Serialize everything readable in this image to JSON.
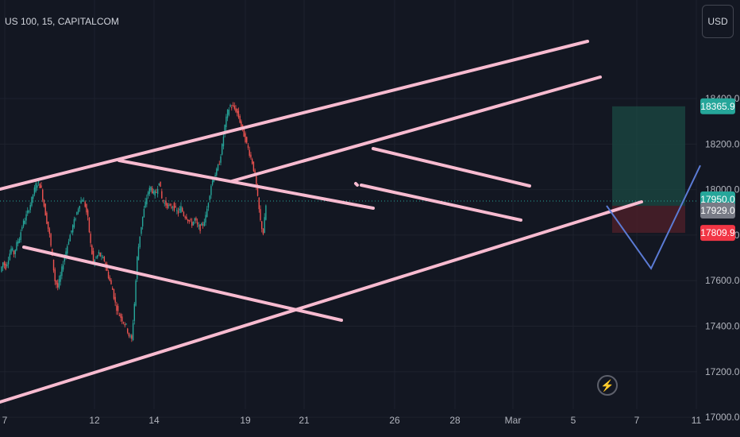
{
  "header": {
    "title": "US 100, 15, CAPITALCOM",
    "currency_button": "USD"
  },
  "colors": {
    "background": "#131722",
    "up": "#26a69a",
    "down": "#ef5350",
    "trendline": "#f8bbd0",
    "projection": "#5b7bd5",
    "target_zone": "#1b4a43",
    "stop_zone": "#4a1f28",
    "current_line": "#26a69a"
  },
  "chart_data": {
    "type": "candlestick",
    "symbol": "US 100",
    "interval": "15",
    "source": "CAPITALCOM",
    "y_axis": {
      "ticks": [
        17000.0,
        17200.0,
        17400.0,
        17600.0,
        17800.0,
        18000.0,
        18200.0,
        18400.0
      ],
      "tick_labels": [
        "17000.0",
        "17200.0",
        "17400.0",
        "17600.0",
        "17800.0",
        "18000.0",
        "18200.0",
        "18400.0"
      ],
      "ylim": [
        16960,
        18580
      ]
    },
    "x_axis": {
      "tick_labels": [
        "7",
        "12",
        "14",
        "19",
        "21",
        "26",
        "28",
        "Mar",
        "5",
        "7",
        "11"
      ]
    },
    "price_path": [
      [
        0,
        17640
      ],
      [
        4,
        17680
      ],
      [
        8,
        17660
      ],
      [
        12,
        17700
      ],
      [
        16,
        17740
      ],
      [
        20,
        17720
      ],
      [
        24,
        17760
      ],
      [
        28,
        17790
      ],
      [
        32,
        17840
      ],
      [
        36,
        17870
      ],
      [
        40,
        17900
      ],
      [
        44,
        17935
      ],
      [
        48,
        17980
      ],
      [
        52,
        18020
      ],
      [
        54,
        18035
      ],
      [
        56,
        18000
      ],
      [
        58,
        17930
      ],
      [
        60,
        17860
      ],
      [
        62,
        17800
      ],
      [
        64,
        17700
      ],
      [
        66,
        17600
      ],
      [
        68,
        17570
      ],
      [
        70,
        17620
      ],
      [
        72,
        17680
      ],
      [
        74,
        17730
      ],
      [
        76,
        17780
      ],
      [
        78,
        17820
      ],
      [
        80,
        17860
      ],
      [
        82,
        17900
      ],
      [
        84,
        17940
      ],
      [
        86,
        17960
      ],
      [
        88,
        17930
      ],
      [
        90,
        17870
      ],
      [
        92,
        17760
      ],
      [
        94,
        17680
      ],
      [
        96,
        17700
      ],
      [
        98,
        17720
      ],
      [
        100,
        17700
      ],
      [
        102,
        17690
      ],
      [
        104,
        17640
      ],
      [
        106,
        17600
      ],
      [
        108,
        17560
      ],
      [
        110,
        17500
      ],
      [
        112,
        17460
      ],
      [
        114,
        17440
      ],
      [
        116,
        17420
      ],
      [
        118,
        17400
      ],
      [
        120,
        17360
      ],
      [
        122,
        17340
      ],
      [
        124,
        17500
      ],
      [
        126,
        17700
      ],
      [
        128,
        17800
      ],
      [
        130,
        17880
      ],
      [
        132,
        17940
      ],
      [
        134,
        17990
      ],
      [
        136,
        18010
      ],
      [
        138,
        17980
      ],
      [
        140,
        17990
      ],
      [
        142,
        18040
      ],
      [
        144,
        17960
      ],
      [
        146,
        17940
      ],
      [
        148,
        17930
      ],
      [
        150,
        17920
      ],
      [
        152,
        17930
      ],
      [
        154,
        17910
      ],
      [
        156,
        17900
      ],
      [
        158,
        17920
      ],
      [
        160,
        17890
      ],
      [
        162,
        17880
      ],
      [
        164,
        17860
      ],
      [
        166,
        17850
      ],
      [
        168,
        17870
      ],
      [
        170,
        17840
      ],
      [
        172,
        17830
      ],
      [
        174,
        17850
      ],
      [
        176,
        17880
      ],
      [
        178,
        17950
      ],
      [
        180,
        18020
      ],
      [
        182,
        18060
      ],
      [
        184,
        18080
      ],
      [
        186,
        18120
      ],
      [
        188,
        18190
      ],
      [
        190,
        18280
      ],
      [
        192,
        18340
      ],
      [
        194,
        18370
      ],
      [
        196,
        18360
      ],
      [
        198,
        18350
      ],
      [
        200,
        18320
      ],
      [
        202,
        18280
      ],
      [
        204,
        18240
      ],
      [
        206,
        18200
      ],
      [
        208,
        18160
      ],
      [
        210,
        18120
      ],
      [
        212,
        18060
      ],
      [
        214,
        17960
      ],
      [
        216,
        17860
      ],
      [
        218,
        17809
      ],
      [
        220,
        17929
      ]
    ],
    "current_price": 17950.0,
    "price_badges": [
      {
        "label": "18365.9",
        "value": 18365.9,
        "color": "#26a69a"
      },
      {
        "label": "17950.0",
        "value": 17950.0,
        "color": "#26a69a"
      },
      {
        "label": "17929.0",
        "value": 17929.0,
        "color": "#787b86"
      },
      {
        "label": "17809.9",
        "value": 17809.9,
        "color": "#f23645"
      }
    ],
    "position": {
      "entry": 17929.0,
      "target": 18365.9,
      "stop": 17809.9
    },
    "projection_path": [
      17929.0,
      17800.0,
      18120.0
    ]
  }
}
